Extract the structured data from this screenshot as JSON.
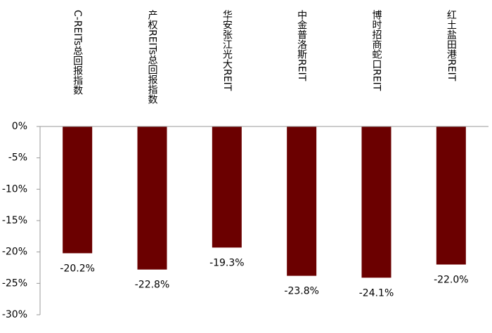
{
  "chart_data": {
    "type": "bar",
    "categories": [
      "C-REITs总回报指数",
      "产权REITs总回报指数",
      "华安张江光大REIT",
      "中金普洛斯REIT",
      "博时招商蛇口REIT",
      "红土盐田港REIT"
    ],
    "values": [
      -20.2,
      -22.8,
      -19.3,
      -23.8,
      -24.1,
      -22.0
    ],
    "value_labels": [
      "-20.2%",
      "-22.8%",
      "-19.3%",
      "-23.8%",
      "-24.1%",
      "-22.0%"
    ],
    "color": "#6b0000",
    "ylim": [
      -30,
      0
    ],
    "yticks": [
      {
        "value": 0,
        "label": "0%"
      },
      {
        "value": -5,
        "label": "-5%"
      },
      {
        "value": -10,
        "label": "-10%"
      },
      {
        "value": -15,
        "label": "-15%"
      },
      {
        "value": -20,
        "label": "-20%"
      },
      {
        "value": -25,
        "label": "-25%"
      },
      {
        "value": -30,
        "label": "-30%"
      }
    ],
    "grid": false
  }
}
